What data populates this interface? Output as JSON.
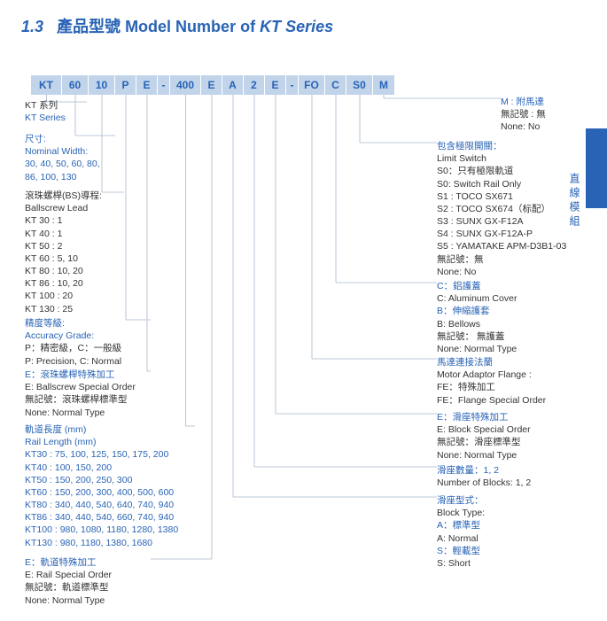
{
  "title": {
    "section_number": "1.3",
    "text_zh": "產品型號",
    "text_en": "Model Number of",
    "series": "KT Series"
  },
  "side_label": "直線模組",
  "model_cells": [
    {
      "label": "KT",
      "width": 35
    },
    {
      "label": "60",
      "width": 30
    },
    {
      "label": "10",
      "width": 30
    },
    {
      "label": "P",
      "width": 24
    },
    {
      "label": "E",
      "width": 24
    },
    {
      "label": "-",
      "width": 14
    },
    {
      "label": "400",
      "width": 35
    },
    {
      "label": "E",
      "width": 24
    },
    {
      "label": "A",
      "width": 24
    },
    {
      "label": "2",
      "width": 24
    },
    {
      "label": "E",
      "width": 24
    },
    {
      "label": "-",
      "width": 14
    },
    {
      "label": "FO",
      "width": 30
    },
    {
      "label": "C",
      "width": 24
    },
    {
      "label": "S0",
      "width": 30
    },
    {
      "label": "M",
      "width": 24
    }
  ],
  "left": {
    "kt": {
      "l1": "KT 系列",
      "l2": "KT Series"
    },
    "width": {
      "h": "尺寸:",
      "l1": "Nominal Width:",
      "l2": "30, 40, 50, 60, 80,",
      "l3": "86, 100, 130"
    },
    "lead": {
      "l1": "滾珠螺桿(BS)導程:",
      "l2": "Ballscrew Lead",
      "v1": "KT 30 : 1",
      "v2": "KT 40 : 1",
      "v3": "KT 50 : 2",
      "v4": "KT 60 :  5, 10",
      "v5": "KT 80 : 10, 20",
      "v6": "KT 86 :  10, 20",
      "v7": "KT 100 :  20",
      "v8": "KT 130 :  25"
    },
    "grade": {
      "h": "精度等級:",
      "l1": "Accuracy Grade:",
      "l2": "P：精密級，C：一般級",
      "l3": "P: Precision, C: Normal"
    },
    "bsorder": {
      "h": "E：滾珠螺桿特殊加工",
      "l1": "E:  Ballscrew Special Order",
      "l2": "無記號：滾珠螺桿標準型",
      "l3": "None: Normal Type"
    },
    "rail": {
      "h": "軌道長度 (mm)",
      "l1": "Rail Length (mm)",
      "v1": "KT30 : 75, 100, 125, 150, 175, 200",
      "v2": "KT40 : 100, 150, 200",
      "v3": "KT50 : 150, 200, 250, 300",
      "v4": "KT60 : 150, 200, 300,  400,  500, 600",
      "v5": "KT80 : 340, 440, 540, 640, 740, 940",
      "v6": "KT86 : 340, 440, 540, 660, 740, 940",
      "v7": "KT100 : 980, 1080, 1180, 1280, 1380",
      "v8": "KT130 : 980, 1180, 1380, 1680"
    },
    "railorder": {
      "h": "E：軌道特殊加工",
      "l1": "E: Rail Special Order",
      "l2": "無記號：軌道標準型",
      "l3": "None: Normal Type"
    }
  },
  "right": {
    "motor": {
      "h": "M : 附馬達",
      "l1": "無記號 : 無",
      "l2": "None: No"
    },
    "limit": {
      "h": "包含極限開關：",
      "l1": "Limit Switch",
      "l2": "S0：只有極限軌道",
      "l3": "S0: Switch Rail Only",
      "l4": "S1 : TOCO  SX671",
      "l5": "S2 : TOCO  SX674（标配）",
      "l6": "S3 : SUNX GX-F12A",
      "l7": "S4 : SUNX GX-F12A-P",
      "l8": "S5 : YAMATAKE APM-D3B1-03",
      "l9": "無記號：無",
      "l10": "None: No"
    },
    "cover": {
      "h": "C：鋁護蓋",
      "l1": "C: Aluminum Cover",
      "l2": "B：伸縮護套",
      "l3": "B: Bellows",
      "l4": "無記號： 無護蓋",
      "l5": "None: Normal Type"
    },
    "flange": {
      "h": "馬達連接法蘭",
      "l1": "Motor Adaptor Flange :",
      "l2": "FE：特殊加工",
      "l3": "FE：Flange Special Order"
    },
    "block": {
      "h": "E：滑座特殊加工",
      "l1": "E: Block Special Order",
      "l2": "無記號：滑座標準型",
      "l3": "None: Normal Type"
    },
    "blocknum": {
      "h": "滑座數量：1, 2",
      "l1": "Number of Blocks: 1, 2"
    },
    "blocktype": {
      "h": "滑座型式：",
      "l1": "Block Type:",
      "l2": "A：標準型",
      "l3": "A: Normal",
      "l4": "S：輕載型",
      "l5": "S: Short"
    }
  },
  "colors": {
    "primary": "#2863b5",
    "cell_bg": "#c1d4ea",
    "line": "#a9b8cc"
  },
  "line_style": {
    "stroke": "#a9b8cc",
    "stroke_width": 0.8
  }
}
